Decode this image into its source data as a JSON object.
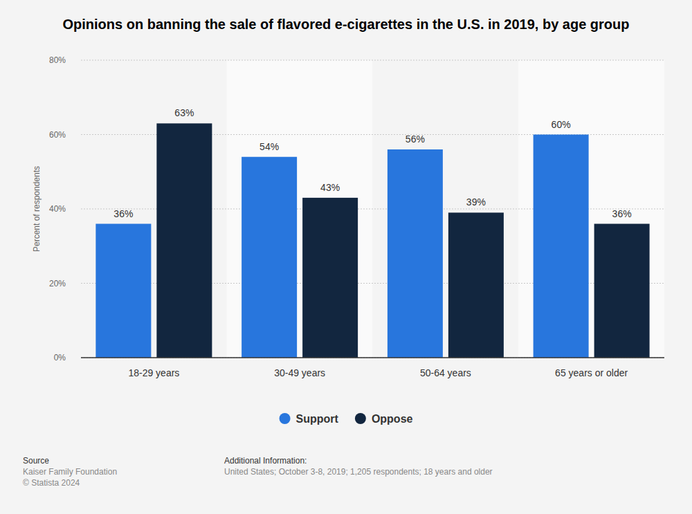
{
  "chart_data": {
    "type": "bar",
    "title": "Opinions on banning the sale of flavored e-cigarettes in the U.S. in 2019, by age group",
    "y_label": "Percent of respondents",
    "categories": [
      "18-29 years",
      "30-49 years",
      "50-64 years",
      "65 years or older"
    ],
    "series": [
      {
        "name": "Support",
        "color": "#2876dd",
        "values": [
          36,
          54,
          56,
          60
        ],
        "value_labels": [
          "36%",
          "54%",
          "56%",
          "60%"
        ]
      },
      {
        "name": "Oppose",
        "color": "#12263f",
        "values": [
          63,
          43,
          39,
          36
        ],
        "value_labels": [
          "63%",
          "43%",
          "39%",
          "36%"
        ]
      }
    ],
    "ylim": [
      0,
      80
    ],
    "yticks": [
      {
        "value": 0,
        "label": "0%"
      },
      {
        "value": 20,
        "label": "20%"
      },
      {
        "value": 40,
        "label": "40%"
      },
      {
        "value": 60,
        "label": "60%"
      },
      {
        "value": 80,
        "label": "80%"
      }
    ],
    "grid": true,
    "legend": "bottom",
    "data_labels": true
  },
  "footer": {
    "source_heading": "Source",
    "source_lines": [
      "Kaiser Family Foundation",
      "© Statista 2024"
    ],
    "info_heading": "Additional Information:",
    "info_lines": [
      "United States; October 3-8, 2019; 1,205 respondents; 18 years and older"
    ]
  }
}
